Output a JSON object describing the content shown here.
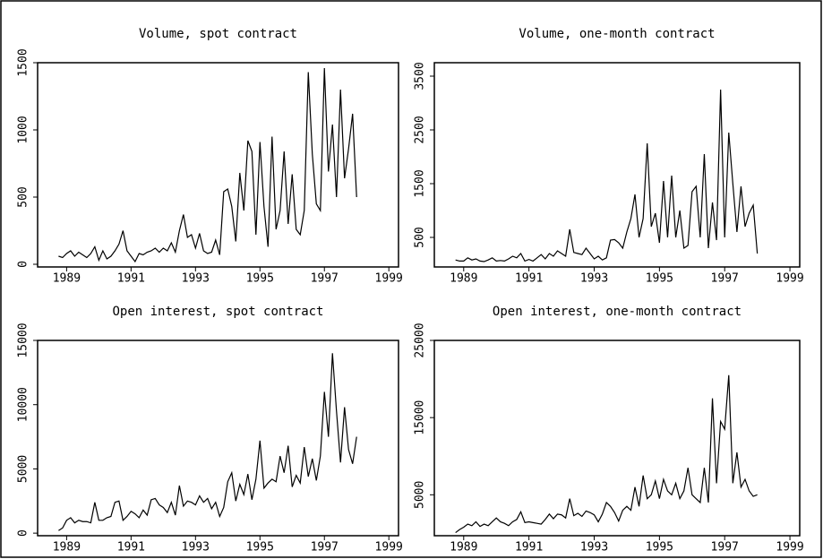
{
  "chart_data": [
    {
      "type": "line",
      "title": "Volume, spot contract",
      "x": [
        1988.75,
        1988.875,
        1989,
        1989.125,
        1989.25,
        1989.375,
        1989.5,
        1989.625,
        1989.75,
        1989.875,
        1990,
        1990.125,
        1990.25,
        1990.375,
        1990.5,
        1990.625,
        1990.75,
        1990.875,
        1991,
        1991.125,
        1991.25,
        1991.375,
        1991.5,
        1991.625,
        1991.75,
        1991.875,
        1992,
        1992.125,
        1992.25,
        1992.375,
        1992.5,
        1992.625,
        1992.75,
        1992.875,
        1993,
        1993.125,
        1993.25,
        1993.375,
        1993.5,
        1993.625,
        1993.75,
        1993.875,
        1994,
        1994.125,
        1994.25,
        1994.375,
        1994.5,
        1994.625,
        1994.75,
        1994.875,
        1995,
        1995.125,
        1995.25,
        1995.375,
        1995.5,
        1995.625,
        1995.75,
        1995.875,
        1996,
        1996.125,
        1996.25,
        1996.375,
        1996.5,
        1996.625,
        1996.75,
        1996.875,
        1997,
        1997.125,
        1997.25,
        1997.375,
        1997.5,
        1997.625,
        1997.75,
        1997.875,
        1998
      ],
      "xlim": [
        1988.1,
        1999.3
      ],
      "xticks": [
        1989,
        1991,
        1993,
        1995,
        1997,
        1999
      ],
      "ylim": [
        -20,
        1500
      ],
      "yticks": [
        0,
        500,
        1000,
        1500
      ],
      "series": [
        {
          "color": "#000000",
          "values": [
            60,
            50,
            80,
            100,
            60,
            90,
            70,
            50,
            80,
            130,
            30,
            100,
            40,
            60,
            100,
            150,
            250,
            100,
            60,
            20,
            80,
            70,
            90,
            100,
            120,
            90,
            120,
            100,
            160,
            90,
            250,
            370,
            200,
            220,
            120,
            230,
            100,
            80,
            90,
            180,
            70,
            540,
            560,
            430,
            170,
            680,
            400,
            920,
            840,
            220,
            910,
            430,
            130,
            950,
            260,
            400,
            840,
            300,
            670,
            260,
            220,
            400,
            1430,
            820,
            450,
            400,
            1460,
            690,
            1040,
            500,
            1300,
            640,
            860,
            1120,
            500
          ]
        }
      ]
    },
    {
      "type": "line",
      "title": "Volume, one-month contract",
      "x": [
        1988.75,
        1988.875,
        1989,
        1989.125,
        1989.25,
        1989.375,
        1989.5,
        1989.625,
        1989.75,
        1989.875,
        1990,
        1990.125,
        1990.25,
        1990.375,
        1990.5,
        1990.625,
        1990.75,
        1990.875,
        1991,
        1991.125,
        1991.25,
        1991.375,
        1991.5,
        1991.625,
        1991.75,
        1991.875,
        1992,
        1992.125,
        1992.25,
        1992.375,
        1992.5,
        1992.625,
        1992.75,
        1992.875,
        1993,
        1993.125,
        1993.25,
        1993.375,
        1993.5,
        1993.625,
        1993.75,
        1993.875,
        1994,
        1994.125,
        1994.25,
        1994.375,
        1994.5,
        1994.625,
        1994.75,
        1994.875,
        1995,
        1995.125,
        1995.25,
        1995.375,
        1995.5,
        1995.625,
        1995.75,
        1995.875,
        1996,
        1996.125,
        1996.25,
        1996.375,
        1996.5,
        1996.625,
        1996.75,
        1996.875,
        1997,
        1997.125,
        1997.25,
        1997.375,
        1997.5,
        1997.625,
        1997.75,
        1997.875,
        1998
      ],
      "xlim": [
        1988.1,
        1999.3
      ],
      "xticks": [
        1989,
        1991,
        1993,
        1995,
        1997,
        1999
      ],
      "ylim": [
        -50,
        3750
      ],
      "yticks": [
        500,
        1500,
        2500,
        3500
      ],
      "series": [
        {
          "color": "#000000",
          "values": [
            80,
            60,
            60,
            120,
            80,
            100,
            60,
            50,
            80,
            120,
            60,
            70,
            60,
            100,
            150,
            120,
            200,
            60,
            90,
            60,
            120,
            180,
            100,
            200,
            150,
            250,
            200,
            150,
            650,
            220,
            200,
            180,
            300,
            200,
            100,
            150,
            80,
            120,
            450,
            460,
            400,
            300,
            600,
            850,
            1300,
            500,
            850,
            2250,
            700,
            950,
            400,
            1550,
            500,
            1650,
            500,
            1000,
            300,
            350,
            1350,
            1450,
            500,
            2050,
            300,
            1150,
            450,
            3250,
            500,
            2450,
            1500,
            600,
            1450,
            700,
            950,
            1100,
            200
          ]
        }
      ]
    },
    {
      "type": "line",
      "title": "Open interest, spot contract",
      "x": [
        1988.75,
        1988.875,
        1989,
        1989.125,
        1989.25,
        1989.375,
        1989.5,
        1989.625,
        1989.75,
        1989.875,
        1990,
        1990.125,
        1990.25,
        1990.375,
        1990.5,
        1990.625,
        1990.75,
        1990.875,
        1991,
        1991.125,
        1991.25,
        1991.375,
        1991.5,
        1991.625,
        1991.75,
        1991.875,
        1992,
        1992.125,
        1992.25,
        1992.375,
        1992.5,
        1992.625,
        1992.75,
        1992.875,
        1993,
        1993.125,
        1993.25,
        1993.375,
        1993.5,
        1993.625,
        1993.75,
        1993.875,
        1994,
        1994.125,
        1994.25,
        1994.375,
        1994.5,
        1994.625,
        1994.75,
        1994.875,
        1995,
        1995.125,
        1995.25,
        1995.375,
        1995.5,
        1995.625,
        1995.75,
        1995.875,
        1996,
        1996.125,
        1996.25,
        1996.375,
        1996.5,
        1996.625,
        1996.75,
        1996.875,
        1997,
        1997.125,
        1997.25,
        1997.375,
        1997.5,
        1997.625,
        1997.75,
        1997.875,
        1998
      ],
      "xlim": [
        1988.1,
        1999.3
      ],
      "xticks": [
        1989,
        1991,
        1993,
        1995,
        1997,
        1999
      ],
      "ylim": [
        -200,
        15000
      ],
      "yticks": [
        0,
        5000,
        10000,
        15000
      ],
      "series": [
        {
          "color": "#000000",
          "values": [
            200,
            400,
            1000,
            1200,
            800,
            1000,
            900,
            900,
            800,
            2400,
            1000,
            1000,
            1200,
            1300,
            2400,
            2500,
            1000,
            1300,
            1700,
            1500,
            1200,
            1800,
            1400,
            2600,
            2700,
            2200,
            2000,
            1600,
            2400,
            1400,
            3700,
            2100,
            2500,
            2400,
            2200,
            2900,
            2400,
            2700,
            1900,
            2400,
            1300,
            2000,
            4000,
            4700,
            2500,
            3800,
            3000,
            4600,
            2600,
            4200,
            7200,
            3500,
            3900,
            4200,
            4000,
            6000,
            4700,
            6800,
            3600,
            4500,
            3900,
            6700,
            4400,
            5800,
            4100,
            6000,
            11000,
            7500,
            14000,
            9500,
            5500,
            9800,
            6500,
            5400,
            7500
          ]
        }
      ]
    },
    {
      "type": "line",
      "title": "Open interest, one-month contract",
      "x": [
        1988.75,
        1988.875,
        1989,
        1989.125,
        1989.25,
        1989.375,
        1989.5,
        1989.625,
        1989.75,
        1989.875,
        1990,
        1990.125,
        1990.25,
        1990.375,
        1990.5,
        1990.625,
        1990.75,
        1990.875,
        1991,
        1991.125,
        1991.25,
        1991.375,
        1991.5,
        1991.625,
        1991.75,
        1991.875,
        1992,
        1992.125,
        1992.25,
        1992.375,
        1992.5,
        1992.625,
        1992.75,
        1992.875,
        1993,
        1993.125,
        1993.25,
        1993.375,
        1993.5,
        1993.625,
        1993.75,
        1993.875,
        1994,
        1994.125,
        1994.25,
        1994.375,
        1994.5,
        1994.625,
        1994.75,
        1994.875,
        1995,
        1995.125,
        1995.25,
        1995.375,
        1995.5,
        1995.625,
        1995.75,
        1995.875,
        1996,
        1996.125,
        1996.25,
        1996.375,
        1996.5,
        1996.625,
        1996.75,
        1996.875,
        1997,
        1997.125,
        1997.25,
        1997.375,
        1997.5,
        1997.625,
        1997.75,
        1997.875,
        1998
      ],
      "xlim": [
        1988.1,
        1999.3
      ],
      "xticks": [
        1989,
        1991,
        1993,
        1995,
        1997,
        1999
      ],
      "ylim": [
        -300,
        25000
      ],
      "yticks": [
        5000,
        15000,
        25000
      ],
      "series": [
        {
          "color": "#000000",
          "values": [
            100,
            500,
            800,
            1200,
            1000,
            1500,
            900,
            1200,
            1000,
            1500,
            2000,
            1500,
            1300,
            1000,
            1500,
            1800,
            2800,
            1400,
            1500,
            1400,
            1300,
            1200,
            1800,
            2500,
            1900,
            2500,
            2400,
            2000,
            4500,
            2300,
            2600,
            2200,
            2900,
            2700,
            2400,
            1500,
            2500,
            4000,
            3500,
            2700,
            1600,
            3000,
            3500,
            3000,
            6000,
            3500,
            7500,
            4500,
            5000,
            6800,
            4500,
            7000,
            5500,
            5000,
            6500,
            4500,
            5500,
            8500,
            5000,
            4500,
            4000,
            8500,
            4000,
            17500,
            6500,
            14500,
            13500,
            20500,
            6500,
            10500,
            6000,
            7000,
            5500,
            4800,
            5000
          ]
        }
      ]
    }
  ]
}
